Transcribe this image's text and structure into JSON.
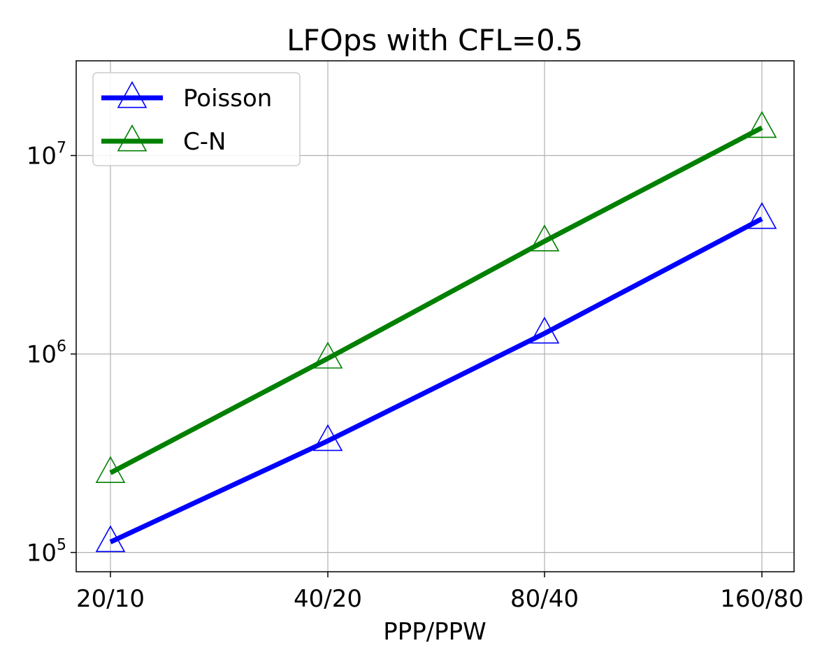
{
  "chart_data": {
    "type": "line",
    "title": "LFOps with CFL=0.5",
    "xlabel": "PPP/PPW",
    "ylabel": "",
    "categories": [
      "20/10",
      "40/20",
      "80/40",
      "160/80"
    ],
    "yscale": "log",
    "ylim": [
      80000,
      30000000
    ],
    "yticks": [
      {
        "value": 100000,
        "base": "10",
        "exp": "5"
      },
      {
        "value": 1000000,
        "base": "10",
        "exp": "6"
      },
      {
        "value": 10000000,
        "base": "10",
        "exp": "7"
      }
    ],
    "grid": true,
    "legend_position": "top-left",
    "marker": "hollow-triangle",
    "series": [
      {
        "name": "Poisson",
        "color": "#0000ff",
        "values": [
          113000,
          365000,
          1270000,
          4800000
        ]
      },
      {
        "name": "C-N",
        "color": "#008000",
        "values": [
          252000,
          950000,
          3700000,
          13800000
        ]
      }
    ]
  }
}
